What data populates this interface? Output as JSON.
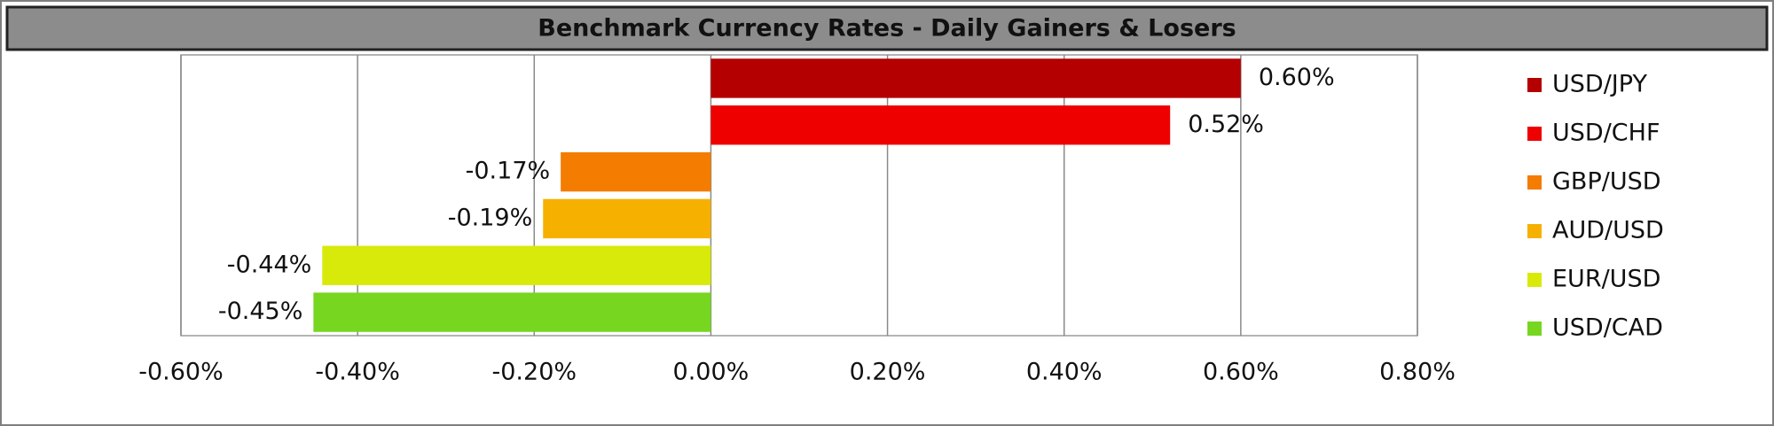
{
  "chart_data": {
    "type": "bar",
    "orientation": "horizontal",
    "title": "Benchmark Currency Rates - Daily Gainers & Losers",
    "categories": [
      "USD/JPY",
      "USD/CHF",
      "GBP/USD",
      "AUD/USD",
      "EUR/USD",
      "USD/CAD"
    ],
    "values": [
      0.6,
      0.52,
      -0.17,
      -0.19,
      -0.44,
      -0.45
    ],
    "value_labels": [
      "0.60%",
      "0.52%",
      "-0.17%",
      "-0.19%",
      "-0.44%",
      "-0.45%"
    ],
    "colors": [
      "#b40000",
      "#ee0000",
      "#f47c00",
      "#f6b000",
      "#d8ea0a",
      "#77d620"
    ],
    "xlim": [
      -0.6,
      0.8
    ],
    "xticks": [
      {
        "value": -0.6,
        "label": "-0.60%"
      },
      {
        "value": -0.4,
        "label": "-0.40%"
      },
      {
        "value": -0.2,
        "label": "-0.20%"
      },
      {
        "value": 0,
        "label": "0.00%"
      },
      {
        "value": 0.2,
        "label": "0.20%"
      },
      {
        "value": 0.4,
        "label": "0.40%"
      },
      {
        "value": 0.6,
        "label": "0.60%"
      },
      {
        "value": 0.8,
        "label": "0.80%"
      }
    ],
    "grid": true,
    "legend": "right"
  }
}
